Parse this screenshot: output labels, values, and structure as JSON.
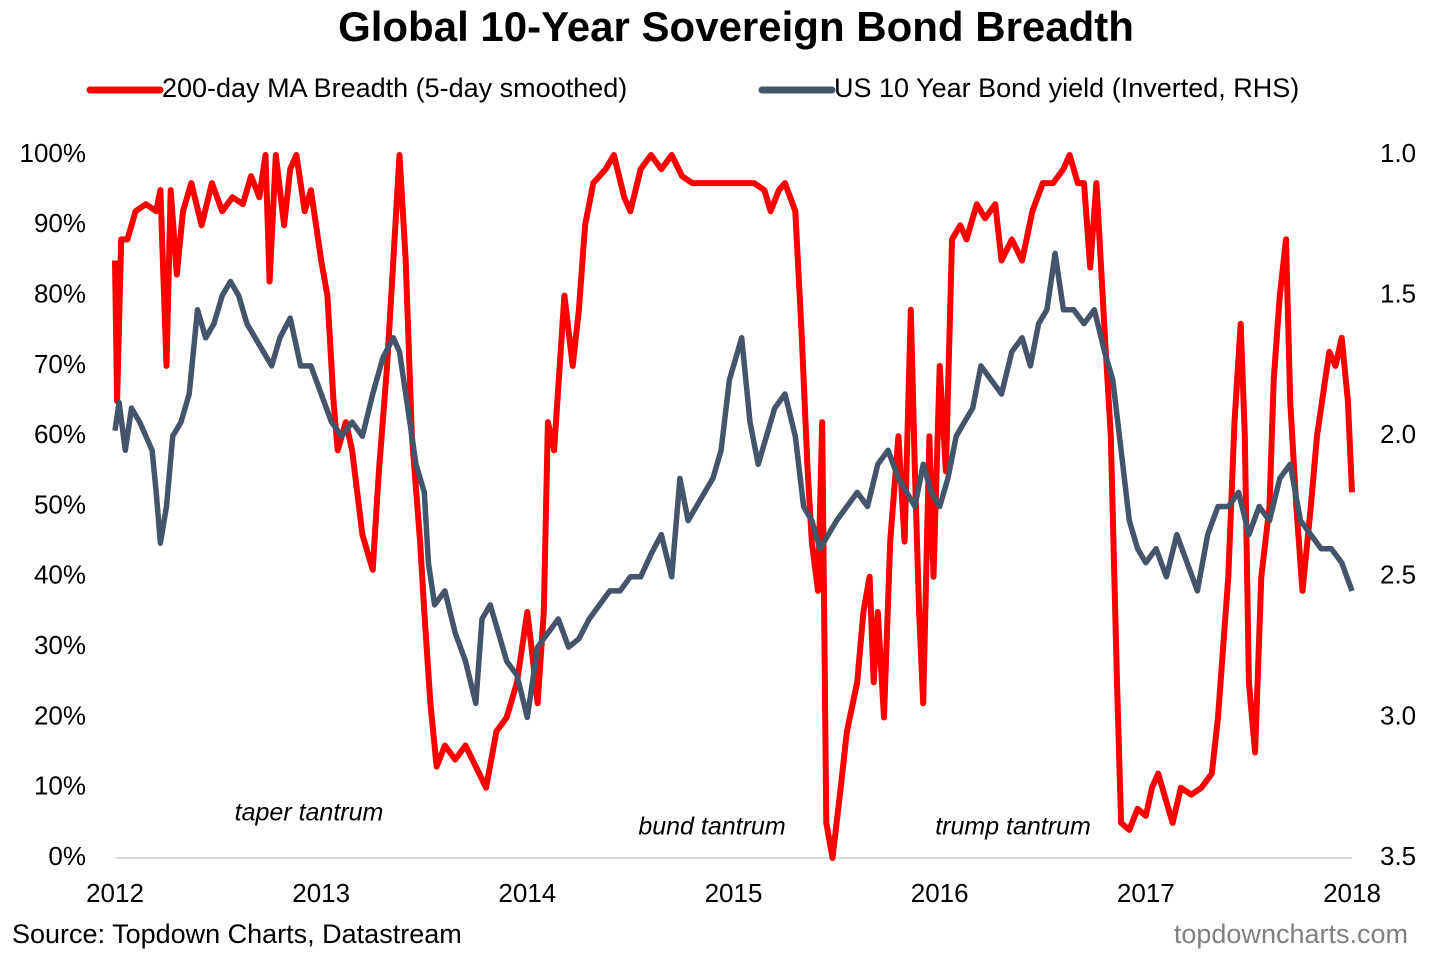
{
  "chart_data": {
    "type": "line",
    "title": "Global 10-Year Sovereign Bond Breadth",
    "source": "Source: Topdown Charts, Datastream",
    "credit": "topdowncharts.com",
    "annotations": [
      "taper tantrum",
      "bund tantrum",
      "trump tantrum"
    ],
    "xlim": [
      2012,
      2018
    ],
    "xticks": [
      2012,
      2013,
      2014,
      2015,
      2016,
      2017,
      2018
    ],
    "ylim": [
      0,
      100
    ],
    "yticks": [
      {
        "value": 0,
        "label": "0%"
      },
      {
        "value": 10,
        "label": "10%"
      },
      {
        "value": 20,
        "label": "20%"
      },
      {
        "value": 30,
        "label": "30%"
      },
      {
        "value": 40,
        "label": "40%"
      },
      {
        "value": 50,
        "label": "50%"
      },
      {
        "value": 60,
        "label": "60%"
      },
      {
        "value": 70,
        "label": "70%"
      },
      {
        "value": 80,
        "label": "80%"
      },
      {
        "value": 90,
        "label": "90%"
      },
      {
        "value": 100,
        "label": "100%"
      }
    ],
    "y2lim": [
      1.0,
      3.5
    ],
    "y2ticks": [
      {
        "value": 1.0,
        "label": "1.0"
      },
      1.5,
      {
        "value": 2.0,
        "label": "2.0"
      },
      2.5,
      {
        "value": 3.0,
        "label": "3.0"
      },
      3.5
    ],
    "y2_inverted": true,
    "grid": false,
    "legend": "top",
    "series": [
      {
        "name": "200-day MA Breadth (5-day smoothed)",
        "color": "#ff0000",
        "x": [
          2012.0,
          2012.01,
          2012.03,
          2012.06,
          2012.1,
          2012.15,
          2012.2,
          2012.22,
          2012.25,
          2012.27,
          2012.3,
          2012.33,
          2012.37,
          2012.42,
          2012.47,
          2012.52,
          2012.57,
          2012.62,
          2012.66,
          2012.7,
          2012.73,
          2012.75,
          2012.78,
          2012.82,
          2012.85,
          2012.88,
          2012.92,
          2012.95,
          2013.0,
          2013.03,
          2013.06,
          2013.08,
          2013.12,
          2013.15,
          2013.2,
          2013.25,
          2013.28,
          2013.32,
          2013.35,
          2013.38,
          2013.41,
          2013.44,
          2013.48,
          2013.5,
          2013.53,
          2013.56,
          2013.6,
          2013.65,
          2013.7,
          2013.75,
          2013.8,
          2013.85,
          2013.9,
          2013.95,
          2014.0,
          2014.02,
          2014.05,
          2014.08,
          2014.1,
          2014.13,
          2014.18,
          2014.22,
          2014.25,
          2014.28,
          2014.32,
          2014.38,
          2014.42,
          2014.47,
          2014.5,
          2014.55,
          2014.6,
          2014.65,
          2014.7,
          2014.75,
          2014.8,
          2014.9,
          2015.0,
          2015.1,
          2015.15,
          2015.18,
          2015.22,
          2015.25,
          2015.3,
          2015.33,
          2015.36,
          2015.38,
          2015.41,
          2015.43,
          2015.45,
          2015.48,
          2015.52,
          2015.55,
          2015.6,
          2015.63,
          2015.66,
          2015.68,
          2015.7,
          2015.73,
          2015.76,
          2015.8,
          2015.83,
          2015.86,
          2015.88,
          2015.9,
          2015.92,
          2015.95,
          2015.97,
          2016.0,
          2016.03,
          2016.06,
          2016.1,
          2016.13,
          2016.18,
          2016.22,
          2016.27,
          2016.3,
          2016.35,
          2016.4,
          2016.45,
          2016.5,
          2016.55,
          2016.6,
          2016.63,
          2016.67,
          2016.7,
          2016.73,
          2016.76,
          2016.8,
          2016.83,
          2016.86,
          2016.88,
          2016.92,
          2016.96,
          2017.0,
          2017.03,
          2017.06,
          2017.1,
          2017.13,
          2017.17,
          2017.22,
          2017.27,
          2017.32,
          2017.35,
          2017.4,
          2017.43,
          2017.46,
          2017.48,
          2017.5,
          2017.53,
          2017.56,
          2017.6,
          2017.62,
          2017.65,
          2017.68,
          2017.7,
          2017.73,
          2017.76,
          2017.8,
          2017.83,
          2017.86,
          2017.89,
          2017.92,
          2017.95,
          2017.98,
          2018.0
        ],
        "values": [
          85,
          65,
          88,
          88,
          92,
          93,
          92,
          95,
          70,
          95,
          83,
          92,
          96,
          90,
          96,
          92,
          94,
          93,
          97,
          94,
          100,
          82,
          100,
          90,
          98,
          100,
          92,
          95,
          85,
          80,
          65,
          58,
          62,
          58,
          46,
          41,
          55,
          70,
          85,
          100,
          85,
          60,
          45,
          35,
          22,
          13,
          16,
          14,
          16,
          13,
          10,
          18,
          20,
          25,
          35,
          30,
          22,
          35,
          62,
          58,
          80,
          70,
          78,
          90,
          96,
          98,
          100,
          94,
          92,
          98,
          100,
          98,
          100,
          97,
          96,
          96,
          96,
          96,
          95,
          92,
          95,
          96,
          92,
          75,
          55,
          45,
          38,
          62,
          5,
          0,
          10,
          18,
          25,
          35,
          40,
          25,
          35,
          20,
          45,
          60,
          45,
          78,
          55,
          35,
          22,
          60,
          40,
          70,
          55,
          88,
          90,
          88,
          93,
          91,
          93,
          85,
          88,
          85,
          92,
          96,
          96,
          98,
          100,
          96,
          96,
          84,
          96,
          75,
          60,
          25,
          5,
          4,
          7,
          6,
          10,
          12,
          8,
          5,
          10,
          9,
          10,
          12,
          20,
          40,
          62,
          76,
          60,
          25,
          15,
          40,
          50,
          68,
          80,
          88,
          65,
          50,
          38,
          50,
          60,
          66,
          72,
          70,
          74,
          65,
          52
        ]
      },
      {
        "name": "US 10 Year Bond yield (Inverted, RHS)",
        "color": "#44546a",
        "axis": "y2",
        "x": [
          2012.0,
          2012.02,
          2012.05,
          2012.08,
          2012.12,
          2012.15,
          2012.18,
          2012.2,
          2012.22,
          2012.25,
          2012.28,
          2012.32,
          2012.36,
          2012.4,
          2012.44,
          2012.48,
          2012.52,
          2012.56,
          2012.6,
          2012.64,
          2012.68,
          2012.72,
          2012.76,
          2012.8,
          2012.85,
          2012.9,
          2012.95,
          2013.0,
          2013.05,
          2013.1,
          2013.15,
          2013.2,
          2013.25,
          2013.3,
          2013.35,
          2013.38,
          2013.42,
          2013.46,
          2013.5,
          2013.52,
          2013.55,
          2013.6,
          2013.65,
          2013.7,
          2013.75,
          2013.78,
          2013.82,
          2013.86,
          2013.9,
          2013.95,
          2014.0,
          2014.05,
          2014.1,
          2014.15,
          2014.2,
          2014.25,
          2014.3,
          2014.35,
          2014.4,
          2014.45,
          2014.5,
          2014.55,
          2014.6,
          2014.65,
          2014.7,
          2014.74,
          2014.78,
          2014.82,
          2014.86,
          2014.9,
          2014.94,
          2014.98,
          2015.04,
          2015.08,
          2015.12,
          2015.16,
          2015.2,
          2015.25,
          2015.3,
          2015.34,
          2015.38,
          2015.42,
          2015.46,
          2015.5,
          2015.55,
          2015.6,
          2015.65,
          2015.7,
          2015.75,
          2015.8,
          2015.84,
          2015.88,
          2015.92,
          2015.96,
          2016.0,
          2016.04,
          2016.08,
          2016.12,
          2016.16,
          2016.2,
          2016.25,
          2016.3,
          2016.35,
          2016.4,
          2016.44,
          2016.48,
          2016.52,
          2016.56,
          2016.6,
          2016.65,
          2016.7,
          2016.75,
          2016.8,
          2016.84,
          2016.88,
          2016.92,
          2016.96,
          2017.0,
          2017.05,
          2017.1,
          2017.15,
          2017.2,
          2017.25,
          2017.3,
          2017.35,
          2017.4,
          2017.45,
          2017.5,
          2017.55,
          2017.6,
          2017.65,
          2017.7,
          2017.75,
          2017.8,
          2017.85,
          2017.9,
          2017.95,
          2018.0
        ],
        "values": [
          1.98,
          1.88,
          2.05,
          1.9,
          1.95,
          2.0,
          2.05,
          2.2,
          2.38,
          2.25,
          2.0,
          1.95,
          1.85,
          1.55,
          1.65,
          1.6,
          1.5,
          1.45,
          1.5,
          1.6,
          1.65,
          1.7,
          1.75,
          1.65,
          1.58,
          1.75,
          1.75,
          1.85,
          1.95,
          2.0,
          1.95,
          2.0,
          1.85,
          1.72,
          1.65,
          1.7,
          1.9,
          2.1,
          2.2,
          2.45,
          2.6,
          2.55,
          2.7,
          2.8,
          2.95,
          2.65,
          2.6,
          2.7,
          2.8,
          2.85,
          3.0,
          2.75,
          2.7,
          2.65,
          2.75,
          2.72,
          2.65,
          2.6,
          2.55,
          2.55,
          2.5,
          2.5,
          2.42,
          2.35,
          2.5,
          2.15,
          2.3,
          2.25,
          2.2,
          2.15,
          2.05,
          1.8,
          1.65,
          1.95,
          2.1,
          2.0,
          1.9,
          1.85,
          2.0,
          2.25,
          2.3,
          2.4,
          2.35,
          2.3,
          2.25,
          2.2,
          2.25,
          2.1,
          2.05,
          2.15,
          2.2,
          2.25,
          2.1,
          2.2,
          2.25,
          2.15,
          2.0,
          1.95,
          1.9,
          1.75,
          1.8,
          1.85,
          1.7,
          1.65,
          1.75,
          1.6,
          1.55,
          1.35,
          1.55,
          1.55,
          1.6,
          1.55,
          1.7,
          1.8,
          2.05,
          2.3,
          2.4,
          2.45,
          2.4,
          2.5,
          2.35,
          2.45,
          2.55,
          2.35,
          2.25,
          2.25,
          2.2,
          2.35,
          2.25,
          2.3,
          2.15,
          2.1,
          2.3,
          2.35,
          2.4,
          2.4,
          2.45,
          2.55
        ]
      }
    ]
  }
}
